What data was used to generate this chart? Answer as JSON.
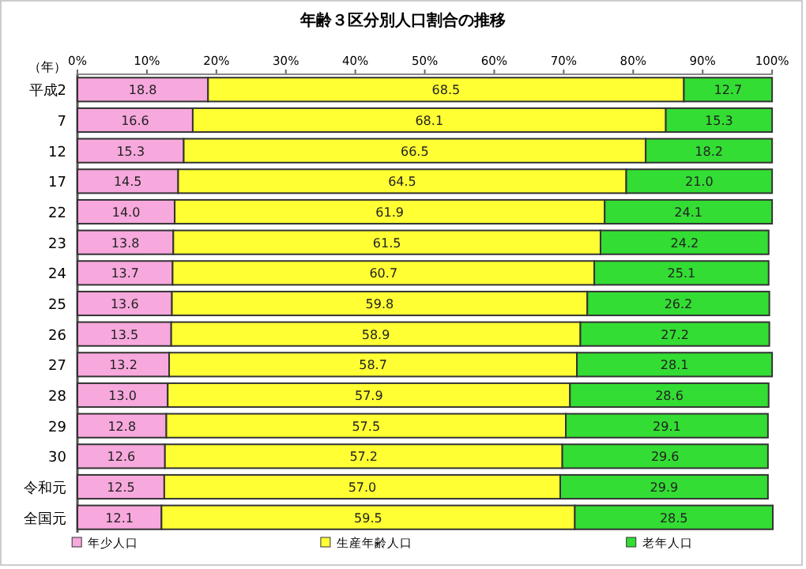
{
  "chart_data": {
    "type": "bar",
    "orientation": "horizontal",
    "stacked": true,
    "title": "年齢３区分別人口割合の推移",
    "ylabel": "（年）",
    "categories": [
      "平成2",
      "7",
      "12",
      "17",
      "22",
      "23",
      "24",
      "25",
      "26",
      "27",
      "28",
      "29",
      "30",
      "令和元",
      "全国元"
    ],
    "series": [
      {
        "name": "年少人口",
        "color": "#f7a8dc",
        "values": [
          18.8,
          16.6,
          15.3,
          14.5,
          14.0,
          13.8,
          13.7,
          13.6,
          13.5,
          13.2,
          13.0,
          12.8,
          12.6,
          12.5,
          12.1
        ],
        "value_labels": [
          "18.8",
          "16.6",
          "15.3",
          "14.5",
          "14.0",
          "13.8",
          "13.7",
          "13.6",
          "13.5",
          "13.2",
          "13.0",
          "12.8",
          "12.6",
          "12.5",
          "12.1"
        ]
      },
      {
        "name": "生産年齢人口",
        "color": "#ffff33",
        "values": [
          68.5,
          68.1,
          66.5,
          64.5,
          61.9,
          61.5,
          60.7,
          59.8,
          58.9,
          58.7,
          57.9,
          57.5,
          57.2,
          57.0,
          59.5
        ],
        "value_labels": [
          "68.5",
          "68.1",
          "66.5",
          "64.5",
          "61.9",
          "61.5",
          "60.7",
          "59.8",
          "58.9",
          "58.7",
          "57.9",
          "57.5",
          "57.2",
          "57.0",
          "59.5"
        ]
      },
      {
        "name": "老年人口",
        "color": "#33dd33",
        "values": [
          12.7,
          15.3,
          18.2,
          21.0,
          24.1,
          24.2,
          25.1,
          26.2,
          27.2,
          28.1,
          28.6,
          29.1,
          29.6,
          29.9,
          28.5
        ],
        "value_labels": [
          "12.7",
          "15.3",
          "18.2",
          "21.0",
          "24.1",
          "24.2",
          "25.1",
          "26.2",
          "27.2",
          "28.1",
          "28.6",
          "29.1",
          "29.6",
          "29.9",
          "28.5"
        ]
      }
    ],
    "xlim": [
      0,
      100.1
    ],
    "xticks": [
      {
        "value": 0,
        "label": "0%"
      },
      {
        "value": 10,
        "label": "10%"
      },
      {
        "value": 20,
        "label": "20%"
      },
      {
        "value": 30,
        "label": "30%"
      },
      {
        "value": 40,
        "label": "40%"
      },
      {
        "value": 50,
        "label": "50%"
      },
      {
        "value": 60,
        "label": "60%"
      },
      {
        "value": 70,
        "label": "70%"
      },
      {
        "value": 80,
        "label": "80%"
      },
      {
        "value": 90,
        "label": "90%"
      },
      {
        "value": 100,
        "label": "100%"
      }
    ],
    "legend": "bottom"
  }
}
